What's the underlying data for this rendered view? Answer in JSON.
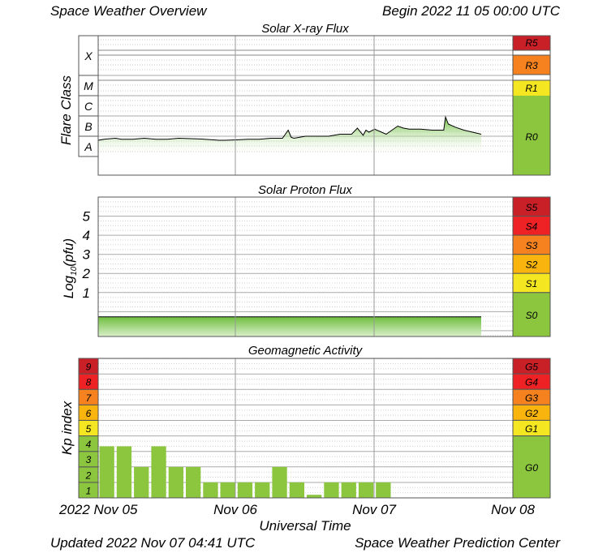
{
  "header": {
    "title": "Space Weather Overview",
    "begin": "Begin 2022 11 05 00:00 UTC"
  },
  "footer": {
    "updated": "Updated 2022 Nov 07 04:41 UTC",
    "center": "Space Weather Prediction Center"
  },
  "colors": {
    "g0": "#8cc63f",
    "yellow": "#f4e721",
    "orange_light": "#f9b40d",
    "orange": "#f5821f",
    "red": "#ee2224",
    "red_dark": "#c92027",
    "xray_fill": "#7ec850",
    "kp_bar": "#8cc63f"
  },
  "chart_data": [
    {
      "type": "area",
      "title": "Solar X-ray Flux",
      "ylabel": "Flare Class",
      "y_scale": "log",
      "y_classes": [
        "A",
        "B",
        "C",
        "M",
        "X"
      ],
      "x_ticks": [
        "2022 Nov 05",
        "Nov 06",
        "Nov 07",
        "Nov 08"
      ],
      "xlim": [
        0,
        72
      ],
      "x_unit": "hours since 2022 Nov 05 00:00 UTC",
      "scale_labels": [
        {
          "label": "R5",
          "color": "red_dark"
        },
        {
          "label": "R3",
          "color": "orange"
        },
        {
          "label": "R1",
          "color": "yellow"
        },
        {
          "label": "R0",
          "color": "g0"
        }
      ],
      "x": [
        0,
        1,
        3,
        4,
        6,
        8,
        10,
        12,
        14,
        16,
        18,
        19,
        20,
        21,
        22,
        24,
        26,
        28,
        30,
        32,
        33,
        33.5,
        34,
        36,
        38,
        40,
        42,
        44,
        45,
        46,
        46.5,
        47,
        48,
        50,
        51,
        52,
        53,
        54,
        56,
        58,
        60,
        60.3,
        60.8,
        62,
        63.5,
        65,
        66.5
      ],
      "y": [
        1.8,
        1.85,
        1.9,
        1.85,
        1.85,
        1.9,
        1.85,
        1.85,
        1.9,
        1.88,
        1.86,
        1.84,
        1.82,
        1.8,
        1.8,
        1.82,
        1.85,
        1.85,
        1.9,
        1.9,
        2.3,
        1.95,
        1.9,
        2.0,
        2.0,
        2.0,
        2.1,
        2.1,
        2.4,
        2.05,
        2.3,
        2.2,
        2.35,
        2.1,
        2.3,
        2.5,
        2.4,
        2.35,
        2.35,
        2.3,
        2.3,
        2.95,
        2.6,
        2.45,
        2.3,
        2.2,
        2.1
      ]
    },
    {
      "type": "area",
      "title": "Solar Proton Flux",
      "ylabel": "Log10(pfu)",
      "ylabel_main": "Log",
      "ylabel_sub": "10",
      "ylabel_rest": "(pfu)",
      "ylim": [
        -1.3,
        6
      ],
      "y_ticks": [
        "1",
        "2",
        "3",
        "4",
        "5"
      ],
      "x_ticks": [
        "2022 Nov 05",
        "Nov 06",
        "Nov 07",
        "Nov 08"
      ],
      "xlim": [
        0,
        72
      ],
      "scale_labels": [
        {
          "label": "S5",
          "color": "red_dark"
        },
        {
          "label": "S4",
          "color": "red"
        },
        {
          "label": "S3",
          "color": "orange"
        },
        {
          "label": "S2",
          "color": "orange_light"
        },
        {
          "label": "S1",
          "color": "yellow"
        },
        {
          "label": "S0",
          "color": "g0"
        }
      ],
      "x": [
        0,
        66.5
      ],
      "y": [
        -0.27,
        -0.27
      ]
    },
    {
      "type": "bar",
      "title": "Geomagnetic Activity",
      "ylabel": "Kp index",
      "ylim": [
        0,
        9
      ],
      "y_ticks": [
        "1",
        "2",
        "3",
        "4",
        "5",
        "6",
        "7",
        "8",
        "9"
      ],
      "x_ticks": [
        "2022 Nov 05",
        "Nov 06",
        "Nov 07",
        "Nov 08"
      ],
      "xlabel": "Universal Time",
      "scale_labels": [
        {
          "label": "G5",
          "color": "red_dark"
        },
        {
          "label": "G4",
          "color": "red"
        },
        {
          "label": "G3",
          "color": "orange"
        },
        {
          "label": "G2",
          "color": "orange_light"
        },
        {
          "label": "G1",
          "color": "yellow"
        },
        {
          "label": "G0",
          "color": "g0"
        }
      ],
      "values": [
        3.33,
        3.33,
        2.0,
        3.33,
        2.0,
        2.0,
        1.0,
        1.0,
        1.0,
        1.0,
        2.0,
        1.0,
        0.2,
        1.0,
        1.0,
        1.0,
        1.0
      ]
    }
  ]
}
